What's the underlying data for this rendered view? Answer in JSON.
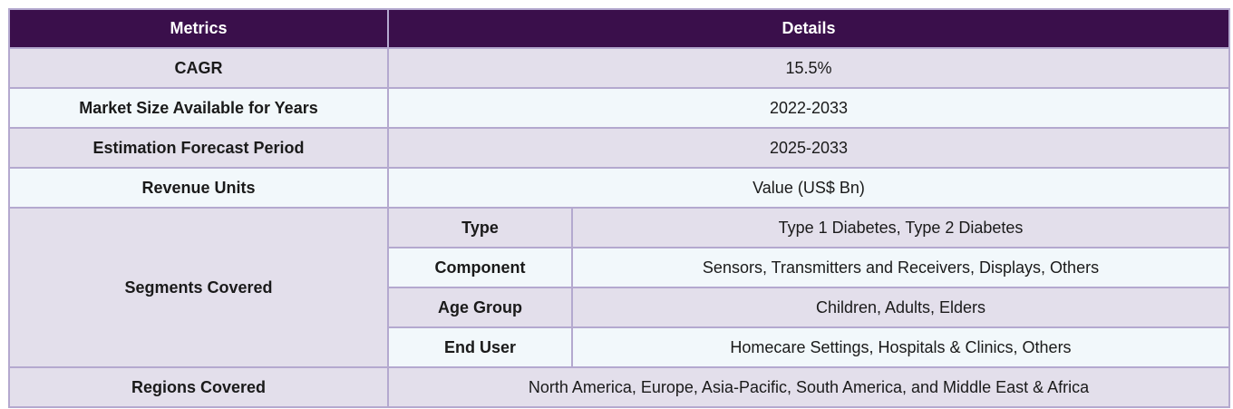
{
  "table": {
    "headers": {
      "metrics": "Metrics",
      "details": "Details"
    },
    "rows": [
      {
        "metric": "CAGR",
        "detail": "15.5%"
      },
      {
        "metric": "Market Size Available for Years",
        "detail": "2022-2033"
      },
      {
        "metric": "Estimation Forecast Period",
        "detail": "2025-2033"
      },
      {
        "metric": "Revenue Units",
        "detail": "Value (US$ Bn)"
      }
    ],
    "segments": {
      "label": "Segments Covered",
      "items": [
        {
          "name": "Type",
          "value": "Type 1 Diabetes, Type 2 Diabetes"
        },
        {
          "name": "Component",
          "value": "Sensors, Transmitters and Receivers, Displays, Others"
        },
        {
          "name": "Age Group",
          "value": "Children, Adults, Elders"
        },
        {
          "name": "End User",
          "value": "Homecare Settings, Hospitals & Clinics, Others"
        }
      ]
    },
    "regions": {
      "label": "Regions Covered",
      "value": "North America, Europe, Asia-Pacific, South America, and Middle East & Africa"
    }
  },
  "colors": {
    "header_bg": "#3a0f4b",
    "row_odd_bg": "#e3dfeb",
    "row_even_bg": "#f2f8fb",
    "border": "#b4a9cf"
  }
}
